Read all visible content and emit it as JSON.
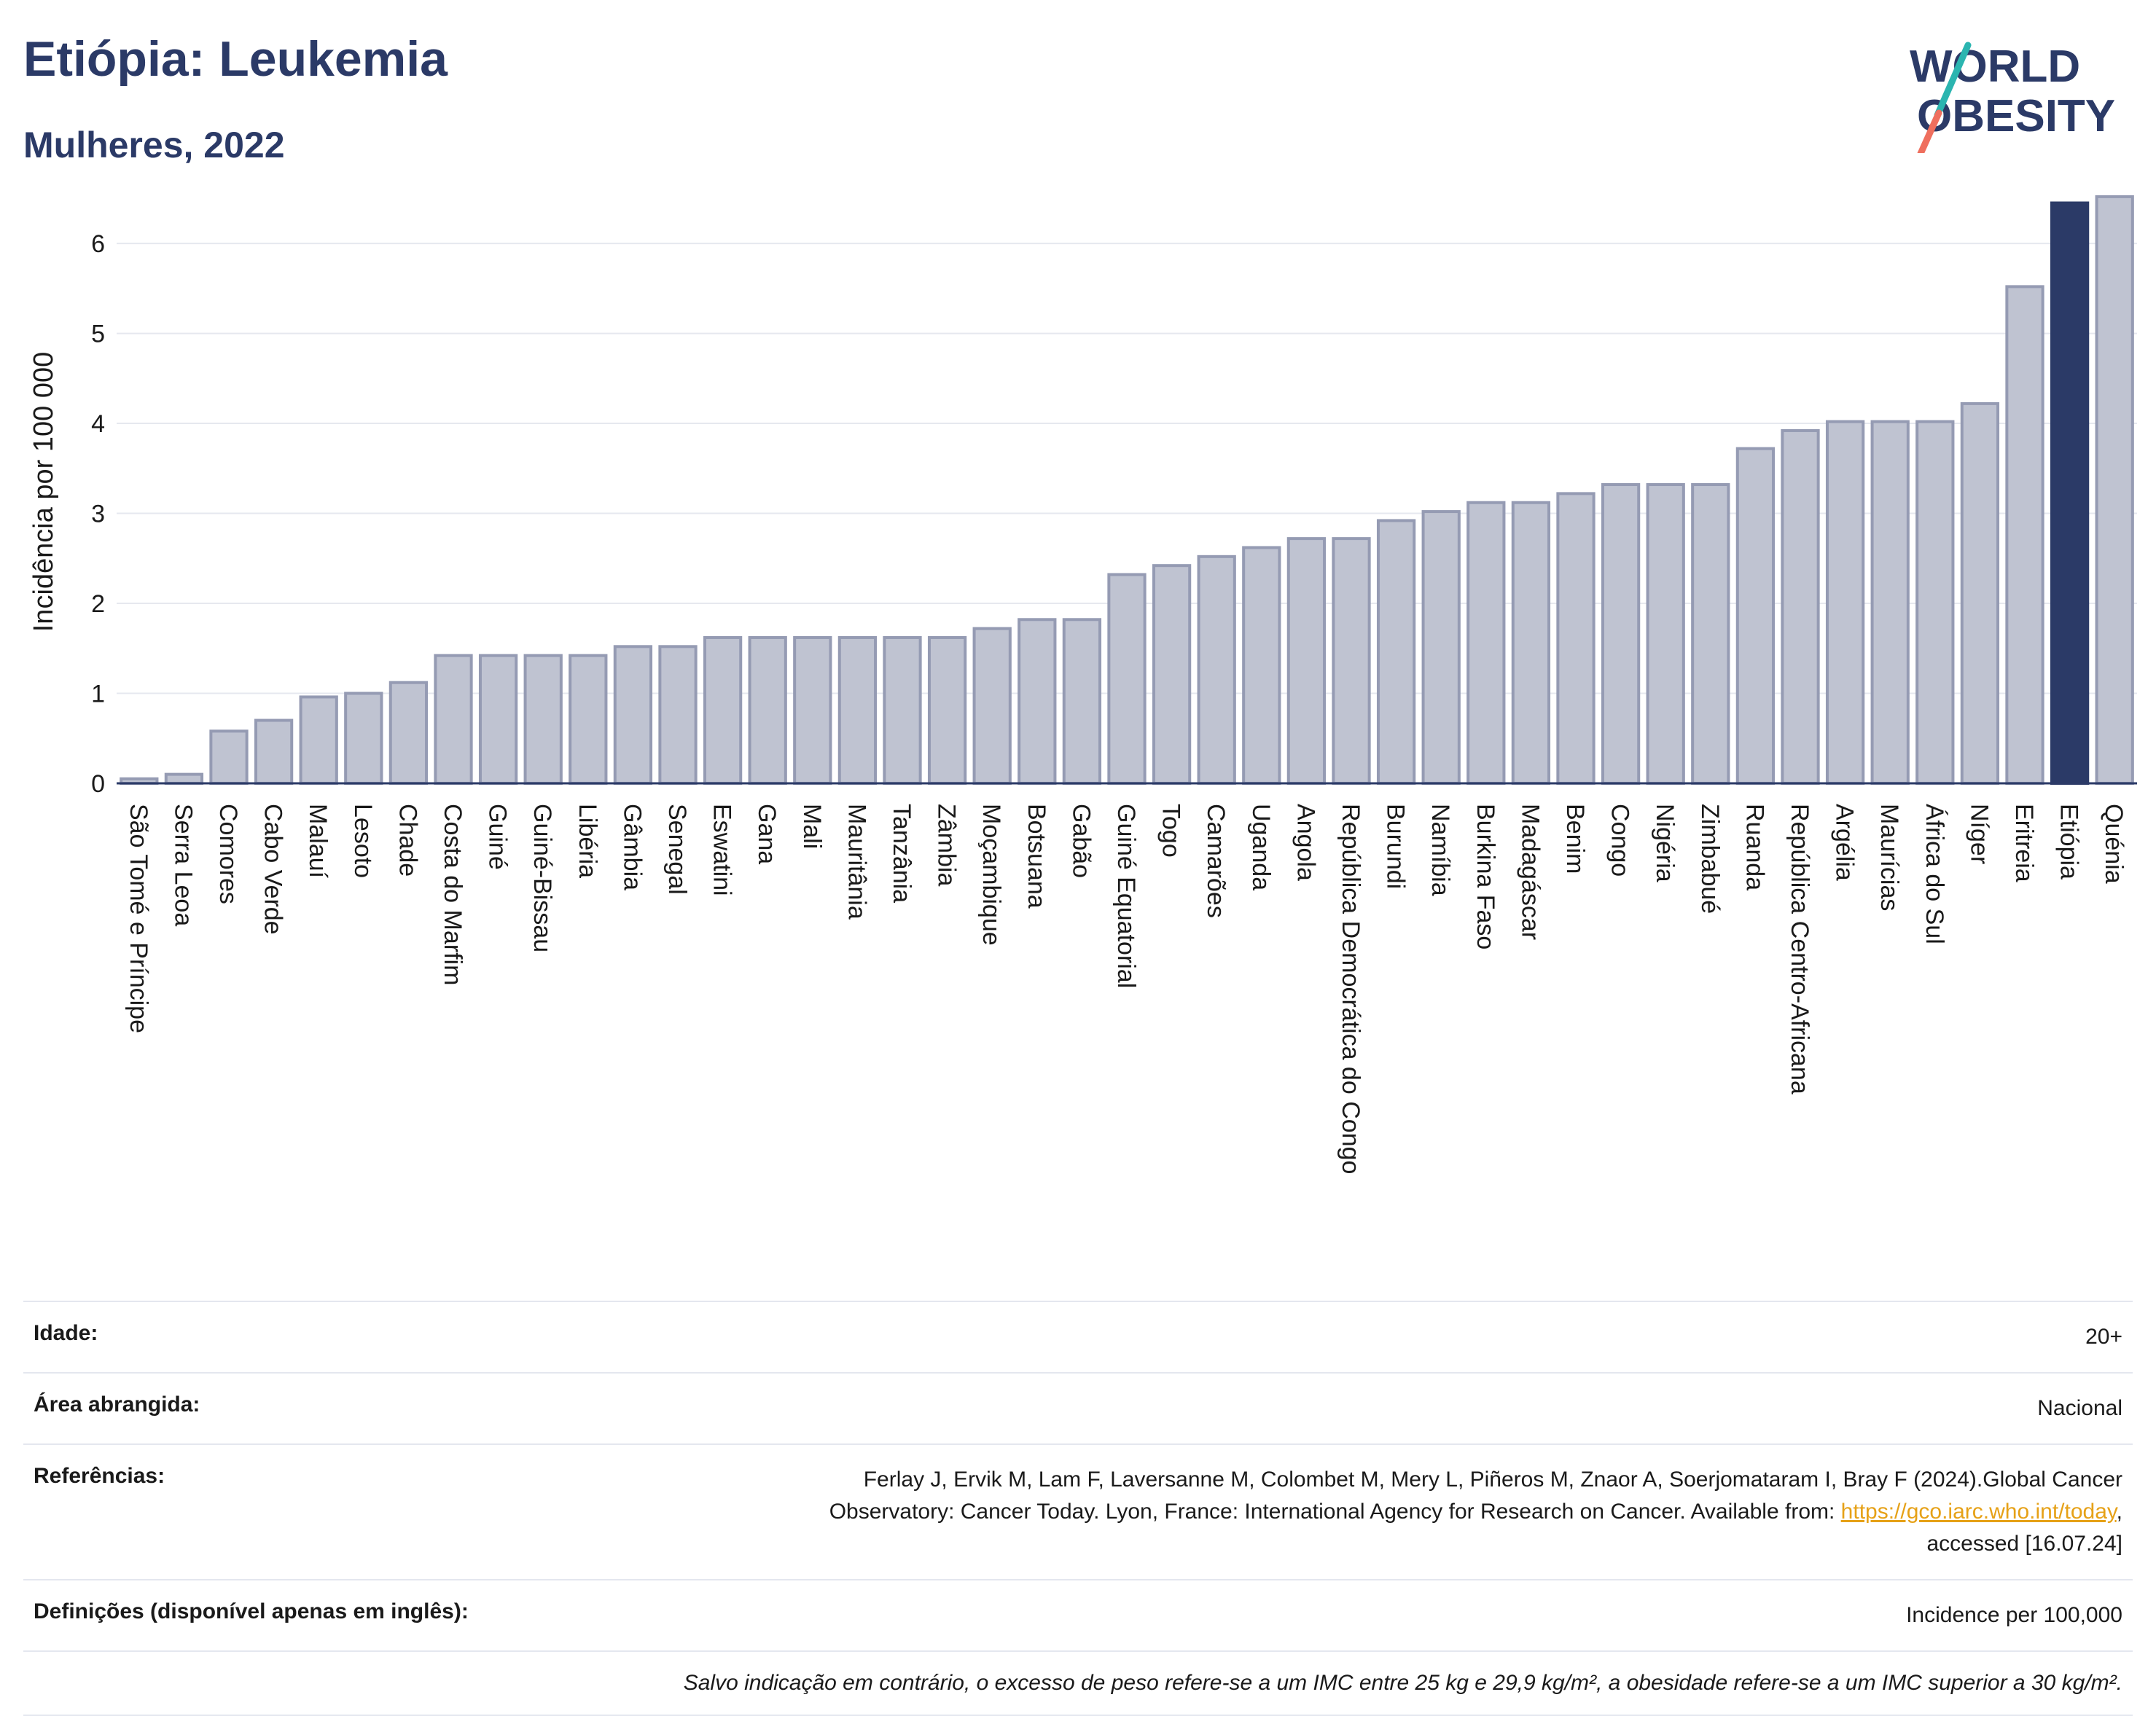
{
  "header": {
    "title": "Etiópia: Leukemia",
    "subtitle": "Mulheres, 2022",
    "logo_text_line1": "WORLD",
    "logo_text_line2": "OBESITY"
  },
  "colors": {
    "bar": "#bfc3d1",
    "bar_stroke": "#959bb3",
    "highlight": "#2b3a67",
    "title": "#2b3a67",
    "grid": "#e6e8ef",
    "link": "#e6a117",
    "logo_teal": "#2bb5b0",
    "logo_coral": "#ef6f5e"
  },
  "chart_data": {
    "type": "bar",
    "title": "Etiópia: Leukemia",
    "subtitle": "Mulheres, 2022",
    "xlabel": "",
    "ylabel": "Incidência por 100 000",
    "ylim": [
      0,
      6.6
    ],
    "yticks": [
      0,
      1,
      2,
      3,
      4,
      5,
      6
    ],
    "grid": true,
    "highlight": "Etiópia",
    "categories": [
      "São Tomé e Príncipe",
      "Serra Leoa",
      "Comores",
      "Cabo Verde",
      "Malauí",
      "Lesoto",
      "Chade",
      "Costa do Marfim",
      "Guiné",
      "Guiné-Bissau",
      "Libéria",
      "Gâmbia",
      "Senegal",
      "Eswatini",
      "Gana",
      "Mali",
      "Mauritânia",
      "Tanzânia",
      "Zâmbia",
      "Moçambique",
      "Botsuana",
      "Gabão",
      "Guiné Equatorial",
      "Togo",
      "Camarões",
      "Uganda",
      "Angola",
      "República Democrática do Congo",
      "Burundi",
      "Namíbia",
      "Burkina Faso",
      "Madagáscar",
      "Benim",
      "Congo",
      "Nigéria",
      "Zimbabué",
      "Ruanda",
      "República Centro-Africana",
      "Argélia",
      "Maurícias",
      "África do Sul",
      "Níger",
      "Eritreia",
      "Etiópia",
      "Quénia"
    ],
    "values": [
      0.05,
      0.1,
      0.58,
      0.7,
      0.96,
      1.0,
      1.12,
      1.42,
      1.42,
      1.42,
      1.42,
      1.52,
      1.52,
      1.62,
      1.62,
      1.62,
      1.62,
      1.62,
      1.62,
      1.72,
      1.82,
      1.82,
      2.32,
      2.42,
      2.52,
      2.62,
      2.72,
      2.72,
      2.92,
      3.02,
      3.12,
      3.12,
      3.22,
      3.32,
      3.32,
      3.32,
      3.72,
      3.92,
      4.02,
      4.02,
      4.02,
      4.22,
      5.52,
      6.45,
      6.52
    ]
  },
  "info": {
    "age_label": "Idade:",
    "age_value": "20+",
    "area_label": "Área abrangida:",
    "area_value": "Nacional",
    "refs_label": "Referências:",
    "refs_line1": "Ferlay J, Ervik M, Lam F, Laversanne M, Colombet M, Mery L, Piñeros M, Znaor A, Soerjomataram I, Bray F (2024).Global Cancer",
    "refs_line2_pre": "Observatory: Cancer Today. Lyon, France: International Agency for Research on Cancer. Available from: ",
    "refs_link": "https://gco.iarc.who.int/today",
    "refs_line2_post": ",",
    "refs_line3": "accessed [16.07.24]",
    "defs_label": "Definições (disponível apenas em inglês):",
    "defs_value": "Incidence per 100,000",
    "footnote": "Salvo indicação em contrário, o excesso de peso refere-se a um IMC entre 25 kg e 29,9 kg/m², a obesidade refere-se a um IMC superior a 30 kg/m²."
  }
}
